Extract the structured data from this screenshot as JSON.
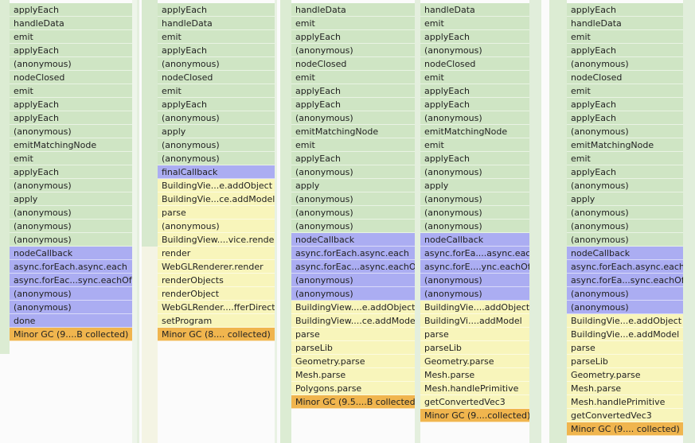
{
  "columns": [
    {
      "segments": [
        {
          "color": "#cfe5c4",
          "labels": [
            "applyEach",
            "handleData",
            "emit",
            "applyEach",
            "(anonymous)",
            "nodeClosed",
            "emit",
            "applyEach",
            "applyEach",
            "(anonymous)",
            "emitMatchingNode",
            "emit",
            "applyEach",
            "(anonymous)",
            "apply",
            "(anonymous)",
            "(anonymous)",
            "(anonymous)"
          ]
        },
        {
          "color": "#abadf2",
          "labels": [
            "nodeCallback",
            "async.forEach.async.each",
            "async.forEac...sync.eachOf",
            "(anonymous)",
            "(anonymous)",
            "done"
          ]
        },
        {
          "color": "#f0b54e",
          "labels": [
            "Minor GC (9....B collected)"
          ]
        }
      ]
    },
    {
      "segments": [
        {
          "color": "#cfe5c4",
          "labels": [
            "applyEach",
            "handleData",
            "emit",
            "applyEach",
            "(anonymous)",
            "nodeClosed",
            "emit",
            "applyEach",
            "(anonymous)",
            "apply",
            "(anonymous)",
            "(anonymous)"
          ]
        },
        {
          "color": "#abadf2",
          "labels": [
            "finalCallback"
          ]
        },
        {
          "color": "#f8f5bb",
          "labels": [
            "BuildingVie...e.addObject",
            "BuildingVie...ce.addModel",
            "parse",
            "(anonymous)",
            "BuildingView....vice.render",
            "render",
            "WebGLRenderer.render",
            "renderObjects",
            "renderObject",
            "WebGLRender....fferDirect",
            "setProgram"
          ]
        },
        {
          "color": "#f0b54e",
          "labels": [
            "Minor GC (8.... collected)"
          ]
        }
      ]
    },
    {
      "segments": [
        {
          "color": "#cfe5c4",
          "labels": [
            "handleData",
            "emit",
            "applyEach",
            "(anonymous)",
            "nodeClosed",
            "emit",
            "applyEach",
            "applyEach",
            "(anonymous)",
            "emitMatchingNode",
            "emit",
            "applyEach",
            "(anonymous)",
            "apply",
            "(anonymous)",
            "(anonymous)",
            "(anonymous)"
          ]
        },
        {
          "color": "#abadf2",
          "labels": [
            "nodeCallback",
            "async.forEach.async.each",
            "async.forEac...async.eachOf",
            "(anonymous)",
            "(anonymous)"
          ]
        },
        {
          "color": "#f8f5bb",
          "labels": [
            "BuildingView....e.addObject",
            "BuildingView....ce.addModel",
            "parse",
            "parseLib",
            "Geometry.parse",
            "Mesh.parse",
            "Polygons.parse"
          ]
        },
        {
          "color": "#f0b54e",
          "labels": [
            "Minor GC (9.5....B collected)"
          ]
        }
      ]
    },
    {
      "segments": [
        {
          "color": "#cfe5c4",
          "labels": [
            "handleData",
            "emit",
            "applyEach",
            "(anonymous)",
            "nodeClosed",
            "emit",
            "applyEach",
            "applyEach",
            "(anonymous)",
            "emitMatchingNode",
            "emit",
            "applyEach",
            "(anonymous)",
            "apply",
            "(anonymous)",
            "(anonymous)",
            "(anonymous)"
          ]
        },
        {
          "color": "#abadf2",
          "labels": [
            "nodeCallback",
            "async.forEa....async.each",
            "async.forE....ync.eachOf",
            "(anonymous)",
            "(anonymous)"
          ]
        },
        {
          "color": "#f8f5bb",
          "labels": [
            "BuildingVie....addObject",
            "BuildingVi....addModel",
            "parse",
            "parseLib",
            "Geometry.parse",
            "Mesh.parse",
            "Mesh.handlePrimitive",
            "getConvertedVec3"
          ]
        },
        {
          "color": "#f0b54e",
          "labels": [
            "Minor GC (9....collected)"
          ]
        }
      ]
    },
    {
      "segments": [
        {
          "color": "#cfe5c4",
          "labels": [
            "applyEach",
            "handleData",
            "emit",
            "applyEach",
            "(anonymous)",
            "nodeClosed",
            "emit",
            "applyEach",
            "applyEach",
            "(anonymous)",
            "emitMatchingNode",
            "emit",
            "applyEach",
            "(anonymous)",
            "apply",
            "(anonymous)",
            "(anonymous)",
            "(anonymous)"
          ]
        },
        {
          "color": "#abadf2",
          "labels": [
            "nodeCallback",
            "async.forEach.async.each",
            "async.forEa...sync.eachOf",
            "(anonymous)",
            "(anonymous)"
          ]
        },
        {
          "color": "#f8f5bb",
          "labels": [
            "BuildingVie...e.addObject",
            "BuildingVie...e.addModel",
            "parse",
            "parseLib",
            "Geometry.parse",
            "Mesh.parse",
            "Mesh.handlePrimitive",
            "getConvertedVec3"
          ]
        },
        {
          "color": "#f0b54e",
          "labels": [
            "Minor GC (9.... collected)"
          ]
        }
      ]
    }
  ]
}
